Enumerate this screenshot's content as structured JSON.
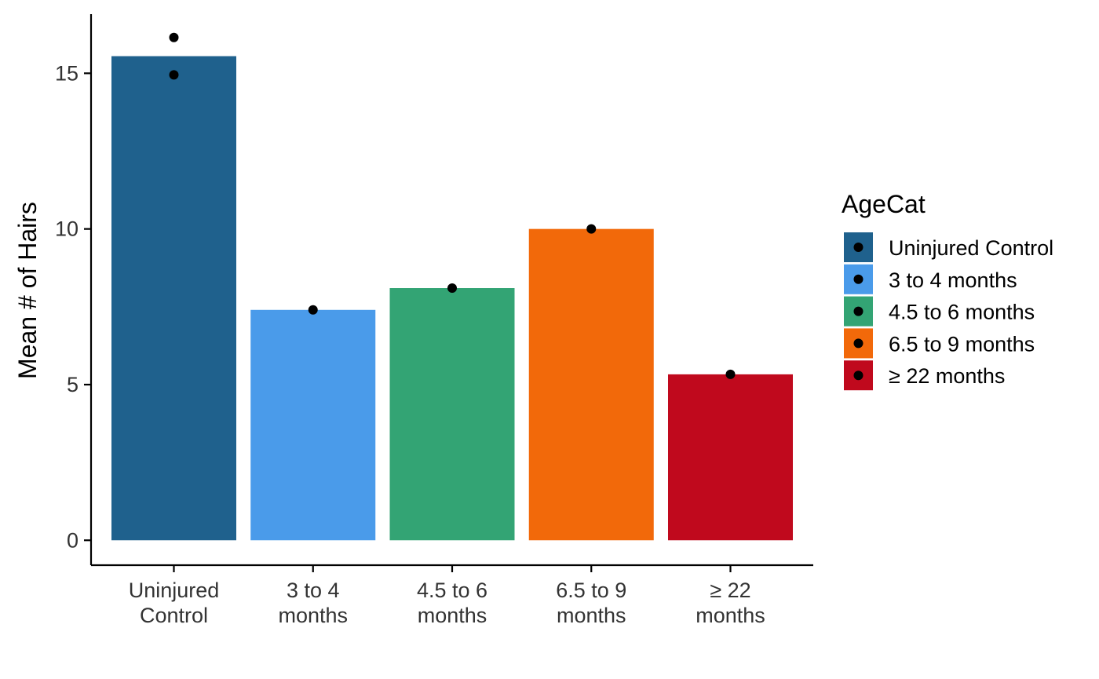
{
  "chart_data": {
    "type": "bar",
    "title": "",
    "xlabel": "",
    "ylabel": "Mean # of Hairs",
    "ylim": [
      -0.8,
      16.9
    ],
    "yticks": [
      0,
      5,
      10,
      15
    ],
    "grid": false,
    "legend_placement": "right",
    "categories": [
      {
        "label_lines": [
          "Uninjured",
          "Control"
        ],
        "value": 15.55,
        "color": "#1F618D",
        "points": [
          16.15,
          14.95
        ]
      },
      {
        "label_lines": [
          "3 to 4",
          "months"
        ],
        "value": 7.4,
        "color": "#4A9BEA",
        "points": [
          7.4
        ]
      },
      {
        "label_lines": [
          "4.5 to 6",
          "months"
        ],
        "value": 8.1,
        "color": "#33A474",
        "points": [
          8.1
        ]
      },
      {
        "label_lines": [
          "6.5 to 9",
          "months"
        ],
        "value": 10.0,
        "color": "#F2690A",
        "points": [
          10.0
        ]
      },
      {
        "label_lines": [
          "≥ 22",
          "months"
        ],
        "value": 5.33,
        "color": "#C0091D",
        "points": [
          5.33
        ]
      }
    ],
    "legend": {
      "title": "AgeCat",
      "entries": [
        {
          "label": "Uninjured Control",
          "color": "#1F618D"
        },
        {
          "label": "3 to 4 months",
          "color": "#4A9BEA"
        },
        {
          "label": "4.5 to 6 months",
          "color": "#33A474"
        },
        {
          "label": "6.5 to 9 months",
          "color": "#F2690A"
        },
        {
          "label": "≥ 22 months",
          "color": "#C0091D"
        }
      ]
    }
  }
}
